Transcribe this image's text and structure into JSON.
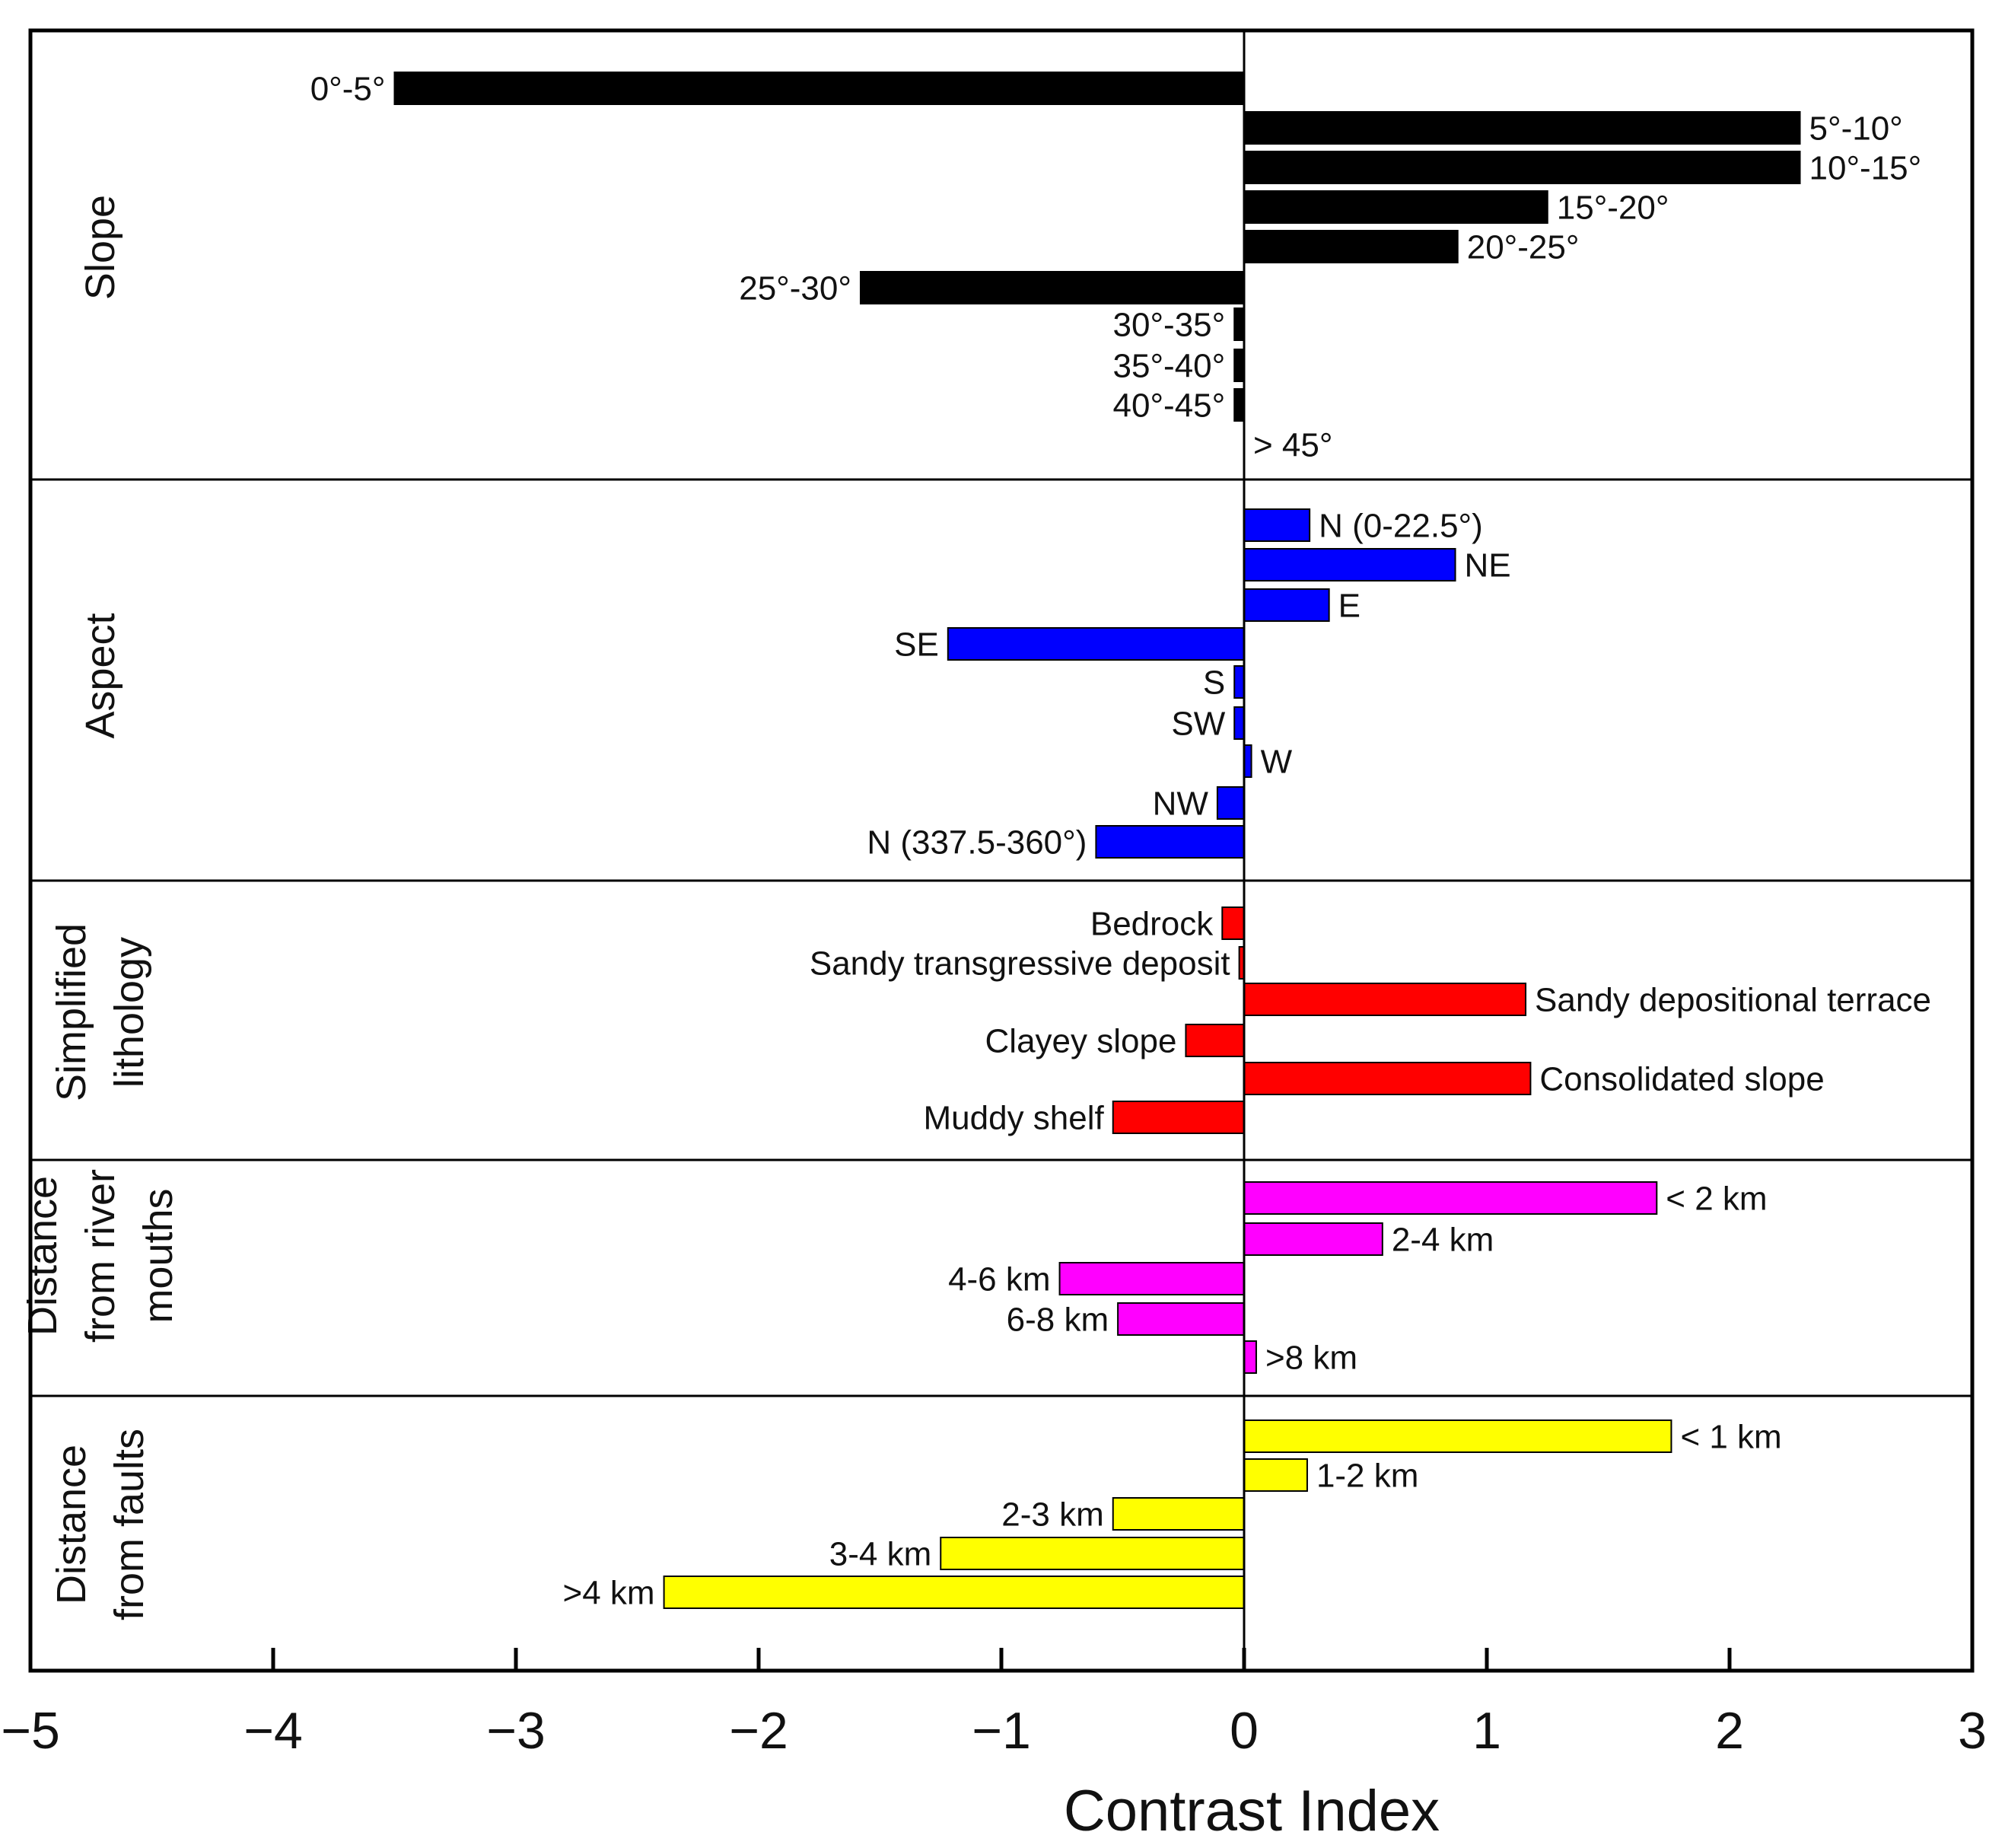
{
  "chart_data": {
    "type": "bar",
    "orientation": "horizontal",
    "title": "",
    "xlabel": "Contrast Index",
    "ylabel": "",
    "xlim": [
      -5,
      3
    ],
    "xticks": [
      -5,
      -4,
      -3,
      -2,
      -1,
      0,
      1,
      2,
      3
    ],
    "xtick_labels": [
      "−5",
      "−4",
      "−3",
      "−2",
      "−1",
      "0",
      "1",
      "2",
      "3"
    ],
    "grid": false,
    "groups": [
      {
        "name": "Slope",
        "color": "#000000",
        "bars": [
          {
            "label": "0°-5°",
            "value": -3.5
          },
          {
            "label": "5°-10°",
            "value": 2.29
          },
          {
            "label": "10°-15°",
            "value": 2.29
          },
          {
            "label": "15°-20°",
            "value": 1.25
          },
          {
            "label": "20°-25°",
            "value": 0.88
          },
          {
            "label": "25°-30°",
            "value": -1.58
          },
          {
            "label": "30°-35°",
            "value": -0.04
          },
          {
            "label": "35°-40°",
            "value": -0.04
          },
          {
            "label": "40°-45°",
            "value": -0.04
          },
          {
            "label": "> 45°",
            "value": 0
          }
        ]
      },
      {
        "name": "Aspect",
        "color": "#0000ff",
        "bars": [
          {
            "label": "N (0-22.5°)",
            "value": 0.27
          },
          {
            "label": "NE",
            "value": 0.87
          },
          {
            "label": "E",
            "value": 0.35
          },
          {
            "label": "SE",
            "value": -1.22
          },
          {
            "label": "S",
            "value": -0.04
          },
          {
            "label": "SW",
            "value": -0.04
          },
          {
            "label": "W",
            "value": 0.03
          },
          {
            "label": "NW",
            "value": -0.11
          },
          {
            "label": "N (337.5-360°)",
            "value": -0.61
          }
        ]
      },
      {
        "name": "Simplified lithology",
        "color": "#ff0000",
        "bars": [
          {
            "label": "Bedrock",
            "value": -0.09
          },
          {
            "label": "Sandy transgressive deposit",
            "value": -0.02
          },
          {
            "label": "Sandy depositional terrace",
            "value": 1.16
          },
          {
            "label": "Clayey slope",
            "value": -0.24
          },
          {
            "label": "Consolidated slope",
            "value": 1.18
          },
          {
            "label": "Muddy shelf",
            "value": -0.54
          }
        ]
      },
      {
        "name": "Distance from river mouths",
        "color": "#ff00ff",
        "bars": [
          {
            "label": "< 2 km",
            "value": 1.7
          },
          {
            "label": "2-4 km",
            "value": 0.57
          },
          {
            "label": "4-6 km",
            "value": -0.76
          },
          {
            "label": "6-8 km",
            "value": -0.52
          },
          {
            "label": ">8 km",
            "value": 0.05
          }
        ]
      },
      {
        "name": "Distance from faults",
        "color": "#ffff00",
        "bars": [
          {
            "label": "< 1 km",
            "value": 1.76
          },
          {
            "label": "1-2 km",
            "value": 0.26
          },
          {
            "label": "2-3 km",
            "value": -0.54
          },
          {
            "label": "3-4 km",
            "value": -1.25
          },
          {
            "label": ">4 km",
            "value": -2.39
          }
        ]
      }
    ]
  }
}
